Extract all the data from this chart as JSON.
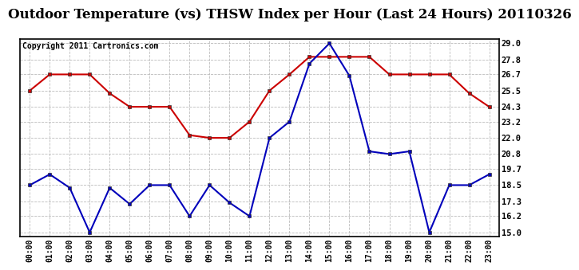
{
  "title": "Outdoor Temperature (vs) THSW Index per Hour (Last 24 Hours) 20110326",
  "copyright": "Copyright 2011 Cartronics.com",
  "hours": [
    "00:00",
    "01:00",
    "02:00",
    "03:00",
    "04:00",
    "05:00",
    "06:00",
    "07:00",
    "08:00",
    "09:00",
    "10:00",
    "11:00",
    "12:00",
    "13:00",
    "14:00",
    "15:00",
    "16:00",
    "17:00",
    "18:00",
    "19:00",
    "20:00",
    "21:00",
    "22:00",
    "23:00"
  ],
  "temp_red": [
    25.5,
    26.7,
    26.7,
    26.7,
    25.3,
    24.3,
    24.3,
    24.3,
    22.2,
    22.0,
    22.0,
    23.2,
    25.5,
    26.7,
    28.0,
    28.0,
    28.0,
    28.0,
    26.7,
    26.7,
    26.7,
    26.7,
    25.3,
    24.3
  ],
  "thsw_blue": [
    18.5,
    19.3,
    18.3,
    15.0,
    18.3,
    17.1,
    18.5,
    18.5,
    16.2,
    18.5,
    17.2,
    16.2,
    22.0,
    23.2,
    27.5,
    29.0,
    26.6,
    21.0,
    20.8,
    21.0,
    15.0,
    18.5,
    18.5,
    19.3
  ],
  "y_ticks": [
    15.0,
    16.2,
    17.3,
    18.5,
    19.7,
    20.8,
    22.0,
    23.2,
    24.3,
    25.5,
    26.7,
    27.8,
    29.0
  ],
  "y_min": 14.7,
  "y_max": 29.3,
  "bg_color": "#ffffff",
  "grid_color": "#bbbbbb",
  "red_color": "#cc0000",
  "blue_color": "#0000bb",
  "title_fontsize": 12,
  "copyright_fontsize": 7
}
